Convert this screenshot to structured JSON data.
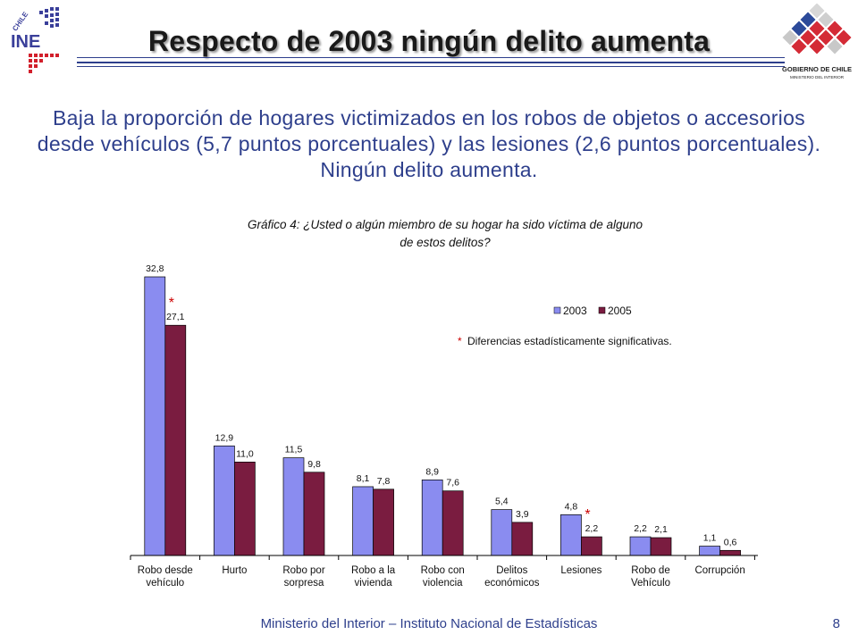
{
  "header": {
    "title": "Respecto de 2003 ningún delito aumenta",
    "ine_logo": {
      "brand_text": "INE",
      "country_text": "CHILE",
      "icon": "ine-logo-icon"
    },
    "gov_logo": {
      "line1": "GOBIERNO DE CHILE",
      "line2": "MINISTERIO DEL INTERIOR",
      "icon": "gobierno-de-chile-logo-icon"
    }
  },
  "subtitle": "Baja la proporción de hogares victimizados en los robos de objetos o accesorios desde vehículos (5,7 puntos porcentuales) y las lesiones (2,6 puntos porcentuales). Ningún delito aumenta.",
  "footer": {
    "text": "Ministerio del Interior – Instituto Nacional de Estadísticas",
    "page_number": "8"
  },
  "colors": {
    "series_2003": "#8a8cf0",
    "series_2005": "#7a1c40",
    "text_blue": "#2e3f8c",
    "asterisk_red": "#cc0000"
  },
  "chart_data": {
    "type": "bar",
    "title_line1": "Gráfico 4: ¿Usted o algún miembro de su hogar ha sido víctima de alguno",
    "title_line2": "de estos delitos?",
    "categories": [
      [
        "Robo desde",
        "vehículo"
      ],
      [
        "Hurto"
      ],
      [
        "Robo por",
        "sorpresa"
      ],
      [
        "Robo a la",
        "vivienda"
      ],
      [
        "Robo con",
        "violencia"
      ],
      [
        "Delitos",
        "económicos"
      ],
      [
        "Lesiones"
      ],
      [
        "Robo de",
        "Vehículo"
      ],
      [
        "Corrupción"
      ]
    ],
    "series": [
      {
        "name": "2003",
        "values": [
          32.8,
          12.9,
          11.5,
          8.1,
          8.9,
          5.4,
          4.8,
          2.2,
          1.1
        ],
        "labels": [
          "32,8",
          "12,9",
          "11,5",
          "8,1",
          "8,9",
          "5,4",
          "4,8",
          "2,2",
          "1,1"
        ]
      },
      {
        "name": "2005",
        "values": [
          27.1,
          11.0,
          9.8,
          7.8,
          7.6,
          3.9,
          2.2,
          2.1,
          0.6
        ],
        "labels": [
          "27,1",
          "11,0",
          "9,8",
          "7,8",
          "7,6",
          "3,9",
          "2,2",
          "2,1",
          "0,6"
        ]
      }
    ],
    "significant_categories": [
      0,
      6
    ],
    "asterisk": "*",
    "note": "Diferencias estadísticamente significativas.",
    "legend_position": "top-right",
    "ylim": [
      0,
      35
    ],
    "grid": false
  }
}
